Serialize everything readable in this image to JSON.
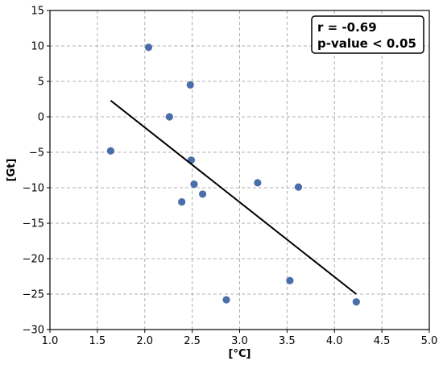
{
  "chart_data": {
    "type": "scatter",
    "xlabel": "[$^\\circ$C]",
    "xlabel_display": "[°C]",
    "ylabel": "[Gt]",
    "xlim": [
      1.0,
      5.0
    ],
    "ylim": [
      -30,
      15
    ],
    "xticks": [
      "1.0",
      "1.5",
      "2.0",
      "2.5",
      "3.0",
      "3.5",
      "4.0",
      "4.5",
      "5.0"
    ],
    "yticks": [
      "15",
      "10",
      "5",
      "0",
      "−5",
      "−10",
      "−15",
      "−20",
      "−25",
      "−30"
    ],
    "grid": true,
    "points": [
      {
        "x": 2.04,
        "y": 9.8
      },
      {
        "x": 2.48,
        "y": 4.5
      },
      {
        "x": 2.26,
        "y": 0.0
      },
      {
        "x": 1.64,
        "y": -4.8
      },
      {
        "x": 2.49,
        "y": -6.1
      },
      {
        "x": 2.52,
        "y": -9.5
      },
      {
        "x": 2.61,
        "y": -10.9
      },
      {
        "x": 2.39,
        "y": -12.0
      },
      {
        "x": 3.19,
        "y": -9.3
      },
      {
        "x": 3.62,
        "y": -9.9
      },
      {
        "x": 3.53,
        "y": -23.1
      },
      {
        "x": 2.86,
        "y": -25.8
      },
      {
        "x": 4.23,
        "y": -26.1
      }
    ],
    "regression_line": {
      "x": [
        1.64,
        4.23
      ],
      "y": [
        2.3,
        -25.0
      ]
    },
    "annotation": {
      "lines": [
        "r = -0.69",
        "p-value < 0.05"
      ],
      "placement": "top-right"
    },
    "colors": {
      "points": "#4a6ea9",
      "line": "#000000",
      "grid": "#b0b0b0"
    }
  }
}
